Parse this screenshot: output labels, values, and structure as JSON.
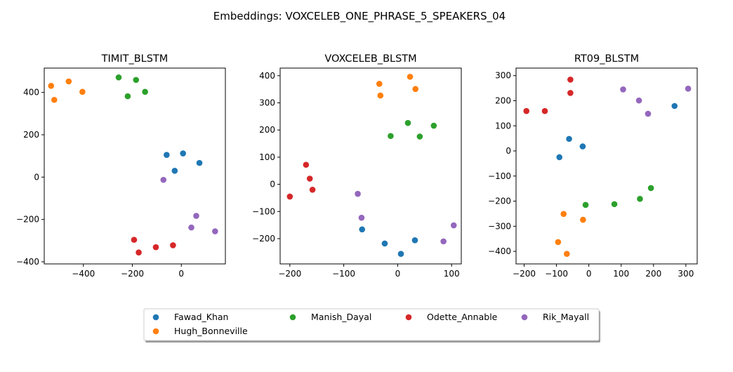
{
  "figure_title": "Embeddings: VOXCELEB_ONE_PHRASE_5_SPEAKERS_04",
  "legend": {
    "placement": "bottom-center",
    "entries": [
      {
        "name": "Fawad_Khan",
        "color": "#1f77b4"
      },
      {
        "name": "Hugh_Bonneville",
        "color": "#ff7f0e"
      },
      {
        "name": "Manish_Dayal",
        "color": "#2ca02c"
      },
      {
        "name": "Odette_Annable",
        "color": "#d62728"
      },
      {
        "name": "Rik_Mayall",
        "color": "#9467bd"
      }
    ]
  },
  "chart_data": [
    {
      "type": "scatter",
      "title": "TIMIT_BLSTM",
      "xlabel": "",
      "ylabel": "",
      "xlim": [
        -560,
        180
      ],
      "ylim": [
        -410,
        515
      ],
      "xticks": [
        -400,
        -200,
        0
      ],
      "yticks": [
        -400,
        -200,
        0,
        200,
        400
      ],
      "grid": false,
      "series": [
        {
          "name": "Fawad_Khan",
          "color": "#1f77b4",
          "points": [
            [
              -60,
              105
            ],
            [
              7,
              112
            ],
            [
              -27,
              30
            ],
            [
              74,
              67
            ]
          ]
        },
        {
          "name": "Hugh_Bonneville",
          "color": "#ff7f0e",
          "points": [
            [
              -532,
              431
            ],
            [
              -460,
              452
            ],
            [
              -404,
              403
            ],
            [
              -519,
              365
            ]
          ]
        },
        {
          "name": "Manish_Dayal",
          "color": "#2ca02c",
          "points": [
            [
              -256,
              471
            ],
            [
              -185,
              459
            ],
            [
              -219,
              382
            ],
            [
              -148,
              403
            ]
          ]
        },
        {
          "name": "Odette_Annable",
          "color": "#d62728",
          "points": [
            [
              -193,
              -296
            ],
            [
              -174,
              -356
            ],
            [
              -104,
              -331
            ],
            [
              -34,
              -322
            ]
          ]
        },
        {
          "name": "Rik_Mayall",
          "color": "#9467bd",
          "points": [
            [
              -73,
              -13
            ],
            [
              61,
              -183
            ],
            [
              41,
              -238
            ],
            [
              138,
              -256
            ]
          ]
        }
      ]
    },
    {
      "type": "scatter",
      "title": "VOXCELEB_BLSTM",
      "xlabel": "",
      "ylabel": "",
      "xlim": [
        -218,
        118
      ],
      "ylim": [
        -293,
        428
      ],
      "xticks": [
        -200,
        -100,
        0,
        100
      ],
      "yticks": [
        -200,
        -100,
        0,
        100,
        200,
        300,
        400
      ],
      "grid": false,
      "series": [
        {
          "name": "Fawad_Khan",
          "color": "#1f77b4",
          "points": [
            [
              -66,
              -166
            ],
            [
              -24,
              -218
            ],
            [
              6,
              -256
            ],
            [
              32,
              -206
            ]
          ]
        },
        {
          "name": "Hugh_Bonneville",
          "color": "#ff7f0e",
          "points": [
            [
              -34,
              370
            ],
            [
              -32,
              327
            ],
            [
              23,
              396
            ],
            [
              33,
              351
            ]
          ]
        },
        {
          "name": "Manish_Dayal",
          "color": "#2ca02c",
          "points": [
            [
              -13,
              178
            ],
            [
              19,
              226
            ],
            [
              41,
              176
            ],
            [
              67,
              216
            ]
          ]
        },
        {
          "name": "Odette_Annable",
          "color": "#d62728",
          "points": [
            [
              -200,
              -45
            ],
            [
              -170,
              72
            ],
            [
              -163,
              21
            ],
            [
              -158,
              -20
            ]
          ]
        },
        {
          "name": "Rik_Mayall",
          "color": "#9467bd",
          "points": [
            [
              -74,
              -35
            ],
            [
              -67,
              -123
            ],
            [
              85,
              -210
            ],
            [
              104,
              -151
            ]
          ]
        }
      ]
    },
    {
      "type": "scatter",
      "title": "RT09_BLSTM",
      "xlabel": "",
      "ylabel": "",
      "xlim": [
        -225,
        335
      ],
      "ylim": [
        -450,
        330
      ],
      "xticks": [
        -200,
        -100,
        0,
        100,
        200,
        300
      ],
      "yticks": [
        -400,
        -300,
        -200,
        -100,
        0,
        100,
        200,
        300
      ],
      "grid": false,
      "series": [
        {
          "name": "Fawad_Khan",
          "color": "#1f77b4",
          "points": [
            [
              -61,
              48
            ],
            [
              -91,
              -25
            ],
            [
              -19,
              18
            ],
            [
              265,
              179
            ]
          ]
        },
        {
          "name": "Hugh_Bonneville",
          "color": "#ff7f0e",
          "points": [
            [
              -78,
              -251
            ],
            [
              -95,
              -363
            ],
            [
              -68,
              -410
            ],
            [
              -18,
              -274
            ]
          ]
        },
        {
          "name": "Manish_Dayal",
          "color": "#2ca02c",
          "points": [
            [
              -10,
              -215
            ],
            [
              79,
              -212
            ],
            [
              158,
              -191
            ],
            [
              192,
              -148
            ]
          ]
        },
        {
          "name": "Odette_Annable",
          "color": "#d62728",
          "points": [
            [
              -193,
              159
            ],
            [
              -136,
              159
            ],
            [
              -57,
              284
            ],
            [
              -57,
              231
            ]
          ]
        },
        {
          "name": "Rik_Mayall",
          "color": "#9467bd",
          "points": [
            [
              106,
              245
            ],
            [
              155,
              201
            ],
            [
              183,
              148
            ],
            [
              307,
              248
            ]
          ]
        }
      ]
    }
  ]
}
